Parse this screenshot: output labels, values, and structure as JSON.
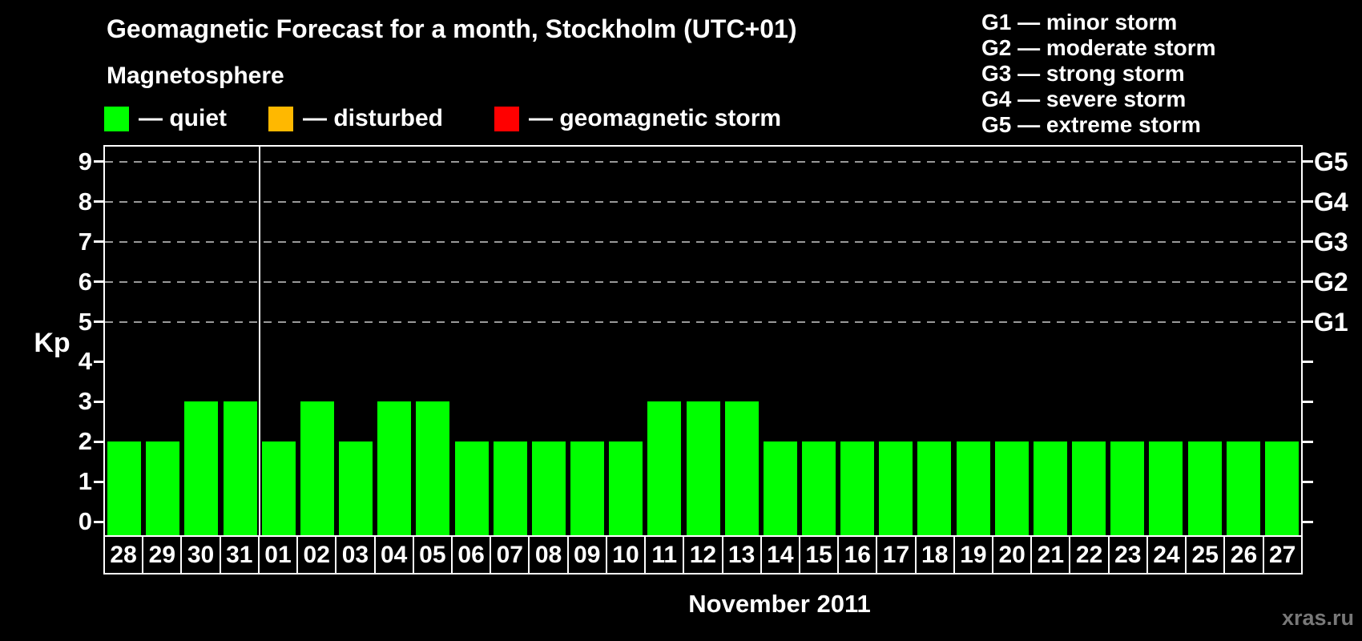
{
  "title": "Geomagnetic Forecast for a month, Stockholm (UTC+01)",
  "subtitle": "Magnetosphere",
  "magnetosphere_legend": [
    {
      "name": "quiet",
      "color": "#00ff00",
      "label": "— quiet"
    },
    {
      "name": "disturbed",
      "color": "#ffb800",
      "label": "— disturbed"
    },
    {
      "name": "geomagnetic-storm",
      "color": "#ff0000",
      "label": "— geomagnetic storm"
    }
  ],
  "storm_scale_legend": [
    "G1 — minor storm",
    "G2 — moderate storm",
    "G3 — strong storm",
    "G4 — severe storm",
    "G5 — extreme storm"
  ],
  "chart_data": {
    "type": "bar",
    "title": "Geomagnetic Forecast for a month, Stockholm (UTC+01)",
    "ylabel": "Kp",
    "xlabel": "November 2011",
    "ylim": [
      0,
      9
    ],
    "yticks": [
      0,
      1,
      2,
      3,
      4,
      5,
      6,
      7,
      8,
      9
    ],
    "gridlines_at": [
      5,
      6,
      7,
      8,
      9
    ],
    "right_axis": [
      {
        "kp": 5,
        "label": "G1"
      },
      {
        "kp": 6,
        "label": "G2"
      },
      {
        "kp": 7,
        "label": "G3"
      },
      {
        "kp": 8,
        "label": "G4"
      },
      {
        "kp": 9,
        "label": "G5"
      }
    ],
    "categories": [
      "28",
      "29",
      "30",
      "31",
      "01",
      "02",
      "03",
      "04",
      "05",
      "06",
      "07",
      "08",
      "09",
      "10",
      "11",
      "12",
      "13",
      "14",
      "15",
      "16",
      "17",
      "18",
      "19",
      "20",
      "21",
      "22",
      "23",
      "24",
      "25",
      "26",
      "27"
    ],
    "values": [
      2,
      2,
      3,
      3,
      2,
      3,
      2,
      3,
      3,
      2,
      2,
      2,
      2,
      2,
      3,
      3,
      3,
      2,
      2,
      2,
      2,
      2,
      2,
      2,
      2,
      2,
      2,
      2,
      2,
      2,
      2
    ],
    "bar_color": "#00ff00",
    "month_divider_index": 3,
    "legend_position": "top",
    "grid": "dashed horizontal at storm levels"
  },
  "watermark": "xras.ru",
  "colors": {
    "background": "#000000",
    "text": "#ffffff",
    "grid": "#999999",
    "quiet": "#00ff00",
    "disturbed": "#ffb800",
    "storm": "#ff0000",
    "watermark": "#787878"
  }
}
